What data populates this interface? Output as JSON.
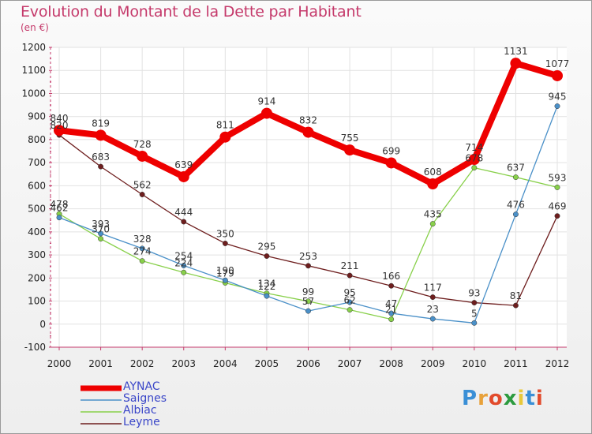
{
  "header": {
    "title": "Evolution du Montant de la Dette par Habitant",
    "subtitle": "(en €)"
  },
  "brand": {
    "name": "Proxiti",
    "letters": [
      "P",
      "r",
      "o",
      "x",
      "i",
      "t",
      "i"
    ],
    "colors": [
      "#3a8fd6",
      "#e8a13a",
      "#e24b2c",
      "#2d9b3f",
      "#e8c83a",
      "#3a8fd6",
      "#e24b2c"
    ]
  },
  "colors": {
    "title": "#c53a6b",
    "legend_text": "#3a46c8",
    "AYNAC": "#ee0000",
    "Saignes": "#4a90c8",
    "Albiac": "#88d04a",
    "Leyme": "#6e1e1e"
  },
  "chart_data": {
    "type": "line",
    "title": "Evolution du Montant de la Dette par Habitant",
    "ylabel": "(en €)",
    "ylim": [
      -100,
      1200
    ],
    "yticks": [
      "-100",
      "0",
      "100",
      "200",
      "300",
      "400",
      "500",
      "600",
      "700",
      "800",
      "900",
      "1000",
      "1100",
      "1200"
    ],
    "categories": [
      "2000",
      "2001",
      "2002",
      "2003",
      "2004",
      "2005",
      "2006",
      "2007",
      "2008",
      "2009",
      "2010",
      "2011",
      "2012"
    ],
    "grid": true,
    "legend_position": "bottom-left",
    "series": [
      {
        "name": "AYNAC",
        "values": [
          840,
          819,
          728,
          639,
          811,
          914,
          832,
          755,
          699,
          608,
          714,
          1131,
          1077
        ]
      },
      {
        "name": "Saignes",
        "values": [
          462,
          393,
          328,
          254,
          190,
          122,
          57,
          95,
          47,
          23,
          5,
          476,
          945
        ]
      },
      {
        "name": "Albiac",
        "values": [
          478,
          370,
          274,
          224,
          179,
          134,
          99,
          62,
          21,
          435,
          678,
          637,
          593
        ]
      },
      {
        "name": "Leyme",
        "values": [
          820,
          683,
          562,
          444,
          350,
          295,
          253,
          211,
          166,
          117,
          93,
          81,
          469
        ]
      }
    ]
  }
}
